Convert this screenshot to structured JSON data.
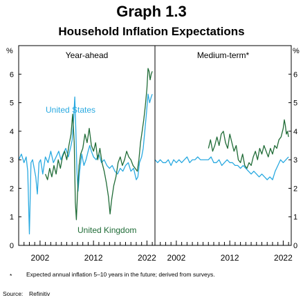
{
  "title": "Graph 1.3",
  "subtitle": "Household Inflation Expectations",
  "unit_left": "%",
  "unit_right": "%",
  "footnote": {
    "marker": "*",
    "text": "Expected annual inflation 5–10 years in the future; derived from surveys."
  },
  "source": {
    "label": "Source:",
    "text": "Refinitiv"
  },
  "colors": {
    "united_states": "#29a9e0",
    "united_kingdom": "#1f6b36",
    "frame": "#000000"
  },
  "chart_data": [
    {
      "type": "line",
      "panel_title": "Year-ahead",
      "xlim": [
        1998.0,
        2023.5
      ],
      "ylim": [
        0,
        7
      ],
      "yticks": [
        0,
        1,
        2,
        3,
        4,
        5,
        6
      ],
      "xtick_labels": [
        "2002",
        "2012",
        "2022"
      ],
      "xtick_values": [
        2002,
        2012,
        2022
      ],
      "series": [
        {
          "name": "United States",
          "x": [
            1998.0,
            1998.5,
            1999.0,
            1999.4,
            1999.7,
            2000.0,
            2000.3,
            2000.6,
            2000.9,
            2001.2,
            2001.5,
            2001.8,
            2002.1,
            2002.5,
            2003.0,
            2003.5,
            2004.0,
            2004.5,
            2005.0,
            2005.5,
            2005.9,
            2006.3,
            2006.8,
            2007.3,
            2007.8,
            2008.0,
            2008.3,
            2008.5,
            2008.7,
            2008.9,
            2009.1,
            2009.4,
            2009.8,
            2010.2,
            2010.6,
            2011.0,
            2011.3,
            2011.6,
            2012.0,
            2012.5,
            2013.0,
            2013.5,
            2014.0,
            2014.5,
            2015.0,
            2015.5,
            2016.0,
            2016.5,
            2017.0,
            2017.5,
            2018.0,
            2018.5,
            2019.0,
            2019.5,
            2020.0,
            2020.3,
            2020.6,
            2021.0,
            2021.3,
            2021.6,
            2021.9,
            2022.2,
            2022.5,
            2022.8,
            2023.0
          ],
          "values": [
            3.0,
            3.2,
            2.9,
            3.1,
            2.6,
            0.4,
            2.9,
            3.0,
            2.7,
            2.4,
            1.8,
            2.9,
            3.0,
            2.5,
            3.1,
            2.9,
            3.3,
            2.9,
            3.1,
            3.3,
            3.0,
            3.2,
            3.4,
            3.1,
            3.5,
            3.7,
            4.5,
            5.2,
            4.0,
            2.6,
            1.9,
            2.6,
            3.2,
            2.8,
            3.0,
            3.3,
            3.5,
            3.3,
            3.1,
            3.0,
            3.2,
            2.9,
            3.0,
            2.8,
            2.7,
            2.8,
            2.6,
            2.5,
            2.7,
            2.6,
            2.8,
            2.9,
            2.6,
            2.7,
            2.3,
            2.4,
            2.9,
            3.1,
            3.4,
            4.0,
            4.6,
            5.3,
            5.0,
            5.2,
            5.3
          ]
        },
        {
          "name": "United Kingdom",
          "x": [
            2003.0,
            2003.4,
            2003.8,
            2004.2,
            2004.6,
            2005.0,
            2005.4,
            2005.8,
            2006.2,
            2006.6,
            2007.0,
            2007.4,
            2007.8,
            2008.1,
            2008.4,
            2008.6,
            2008.8,
            2009.0,
            2009.3,
            2009.6,
            2010.0,
            2010.4,
            2010.8,
            2011.2,
            2011.6,
            2012.0,
            2012.4,
            2012.8,
            2013.2,
            2013.6,
            2014.0,
            2014.4,
            2014.8,
            2015.1,
            2015.4,
            2015.8,
            2016.2,
            2016.6,
            2017.0,
            2017.4,
            2017.8,
            2018.2,
            2018.6,
            2019.0,
            2019.4,
            2019.8,
            2020.2,
            2020.5,
            2020.8,
            2021.1,
            2021.4,
            2021.7,
            2022.0,
            2022.2,
            2022.4,
            2022.6,
            2022.8,
            2023.0
          ],
          "values": [
            2.5,
            2.3,
            2.7,
            2.4,
            2.8,
            2.5,
            3.0,
            2.7,
            3.1,
            3.3,
            3.0,
            3.5,
            3.9,
            4.6,
            3.6,
            1.5,
            0.9,
            1.8,
            2.8,
            3.2,
            3.4,
            3.9,
            3.6,
            4.1,
            3.5,
            3.3,
            3.6,
            3.0,
            3.4,
            2.9,
            2.6,
            2.2,
            1.7,
            1.1,
            1.6,
            2.1,
            2.4,
            2.9,
            3.1,
            2.8,
            3.0,
            3.3,
            3.1,
            3.0,
            2.8,
            2.7,
            2.6,
            3.0,
            3.6,
            4.0,
            4.4,
            4.9,
            5.5,
            6.2,
            6.1,
            5.8,
            6.0,
            6.1
          ]
        }
      ],
      "annotations": [
        "United States",
        "United Kingdom"
      ]
    },
    {
      "type": "line",
      "panel_title": "Medium-term*",
      "xlim": [
        1998.0,
        2023.5
      ],
      "ylim": [
        0,
        7
      ],
      "yticks": [
        0,
        1,
        2,
        3,
        4,
        5,
        6
      ],
      "xtick_labels": [
        "2002",
        "2012",
        "2022"
      ],
      "xtick_values": [
        2002,
        2012,
        2022
      ],
      "series": [
        {
          "name": "United States",
          "x": [
            1998.0,
            1998.5,
            1999.0,
            1999.5,
            2000.0,
            2000.5,
            2001.0,
            2001.5,
            2002.0,
            2002.5,
            2003.0,
            2003.5,
            2004.0,
            2004.5,
            2005.0,
            2005.5,
            2006.0,
            2006.5,
            2007.0,
            2007.5,
            2008.0,
            2008.5,
            2009.0,
            2009.5,
            2010.0,
            2010.5,
            2011.0,
            2011.5,
            2012.0,
            2012.5,
            2013.0,
            2013.5,
            2014.0,
            2014.5,
            2015.0,
            2015.5,
            2016.0,
            2016.5,
            2017.0,
            2017.5,
            2018.0,
            2018.5,
            2019.0,
            2019.5,
            2020.0,
            2020.5,
            2021.0,
            2021.5,
            2022.0,
            2022.5,
            2023.0
          ],
          "values": [
            3.0,
            2.9,
            3.0,
            2.9,
            2.9,
            3.0,
            2.8,
            3.0,
            2.9,
            3.0,
            2.9,
            3.0,
            3.1,
            2.9,
            3.0,
            3.0,
            3.1,
            3.0,
            3.0,
            3.0,
            3.0,
            3.1,
            2.9,
            2.9,
            3.0,
            2.8,
            2.9,
            3.0,
            2.9,
            2.9,
            2.8,
            2.8,
            2.7,
            2.8,
            2.7,
            2.6,
            2.5,
            2.6,
            2.5,
            2.4,
            2.5,
            2.4,
            2.3,
            2.4,
            2.3,
            2.6,
            2.8,
            3.0,
            2.9,
            3.0,
            3.1
          ]
        },
        {
          "name": "United Kingdom",
          "x": [
            2008.0,
            2008.4,
            2008.8,
            2009.2,
            2009.6,
            2010.0,
            2010.4,
            2010.8,
            2011.2,
            2011.6,
            2012.0,
            2012.4,
            2012.8,
            2013.2,
            2013.6,
            2014.0,
            2014.4,
            2014.8,
            2015.2,
            2015.6,
            2016.0,
            2016.4,
            2016.8,
            2017.2,
            2017.6,
            2018.0,
            2018.4,
            2018.8,
            2019.2,
            2019.6,
            2020.0,
            2020.4,
            2020.8,
            2021.2,
            2021.6,
            2022.0,
            2022.2,
            2022.4,
            2022.6,
            2022.8,
            2023.0
          ],
          "values": [
            3.4,
            3.7,
            3.3,
            3.5,
            3.8,
            3.5,
            3.9,
            4.0,
            3.6,
            3.4,
            3.9,
            3.6,
            3.3,
            3.5,
            3.0,
            2.9,
            3.2,
            2.8,
            2.7,
            2.9,
            2.8,
            3.1,
            3.3,
            3.0,
            3.4,
            3.2,
            3.5,
            3.3,
            3.1,
            3.4,
            3.2,
            3.5,
            3.4,
            3.7,
            3.8,
            4.1,
            4.4,
            4.2,
            3.9,
            4.0,
            3.8
          ]
        }
      ]
    }
  ]
}
